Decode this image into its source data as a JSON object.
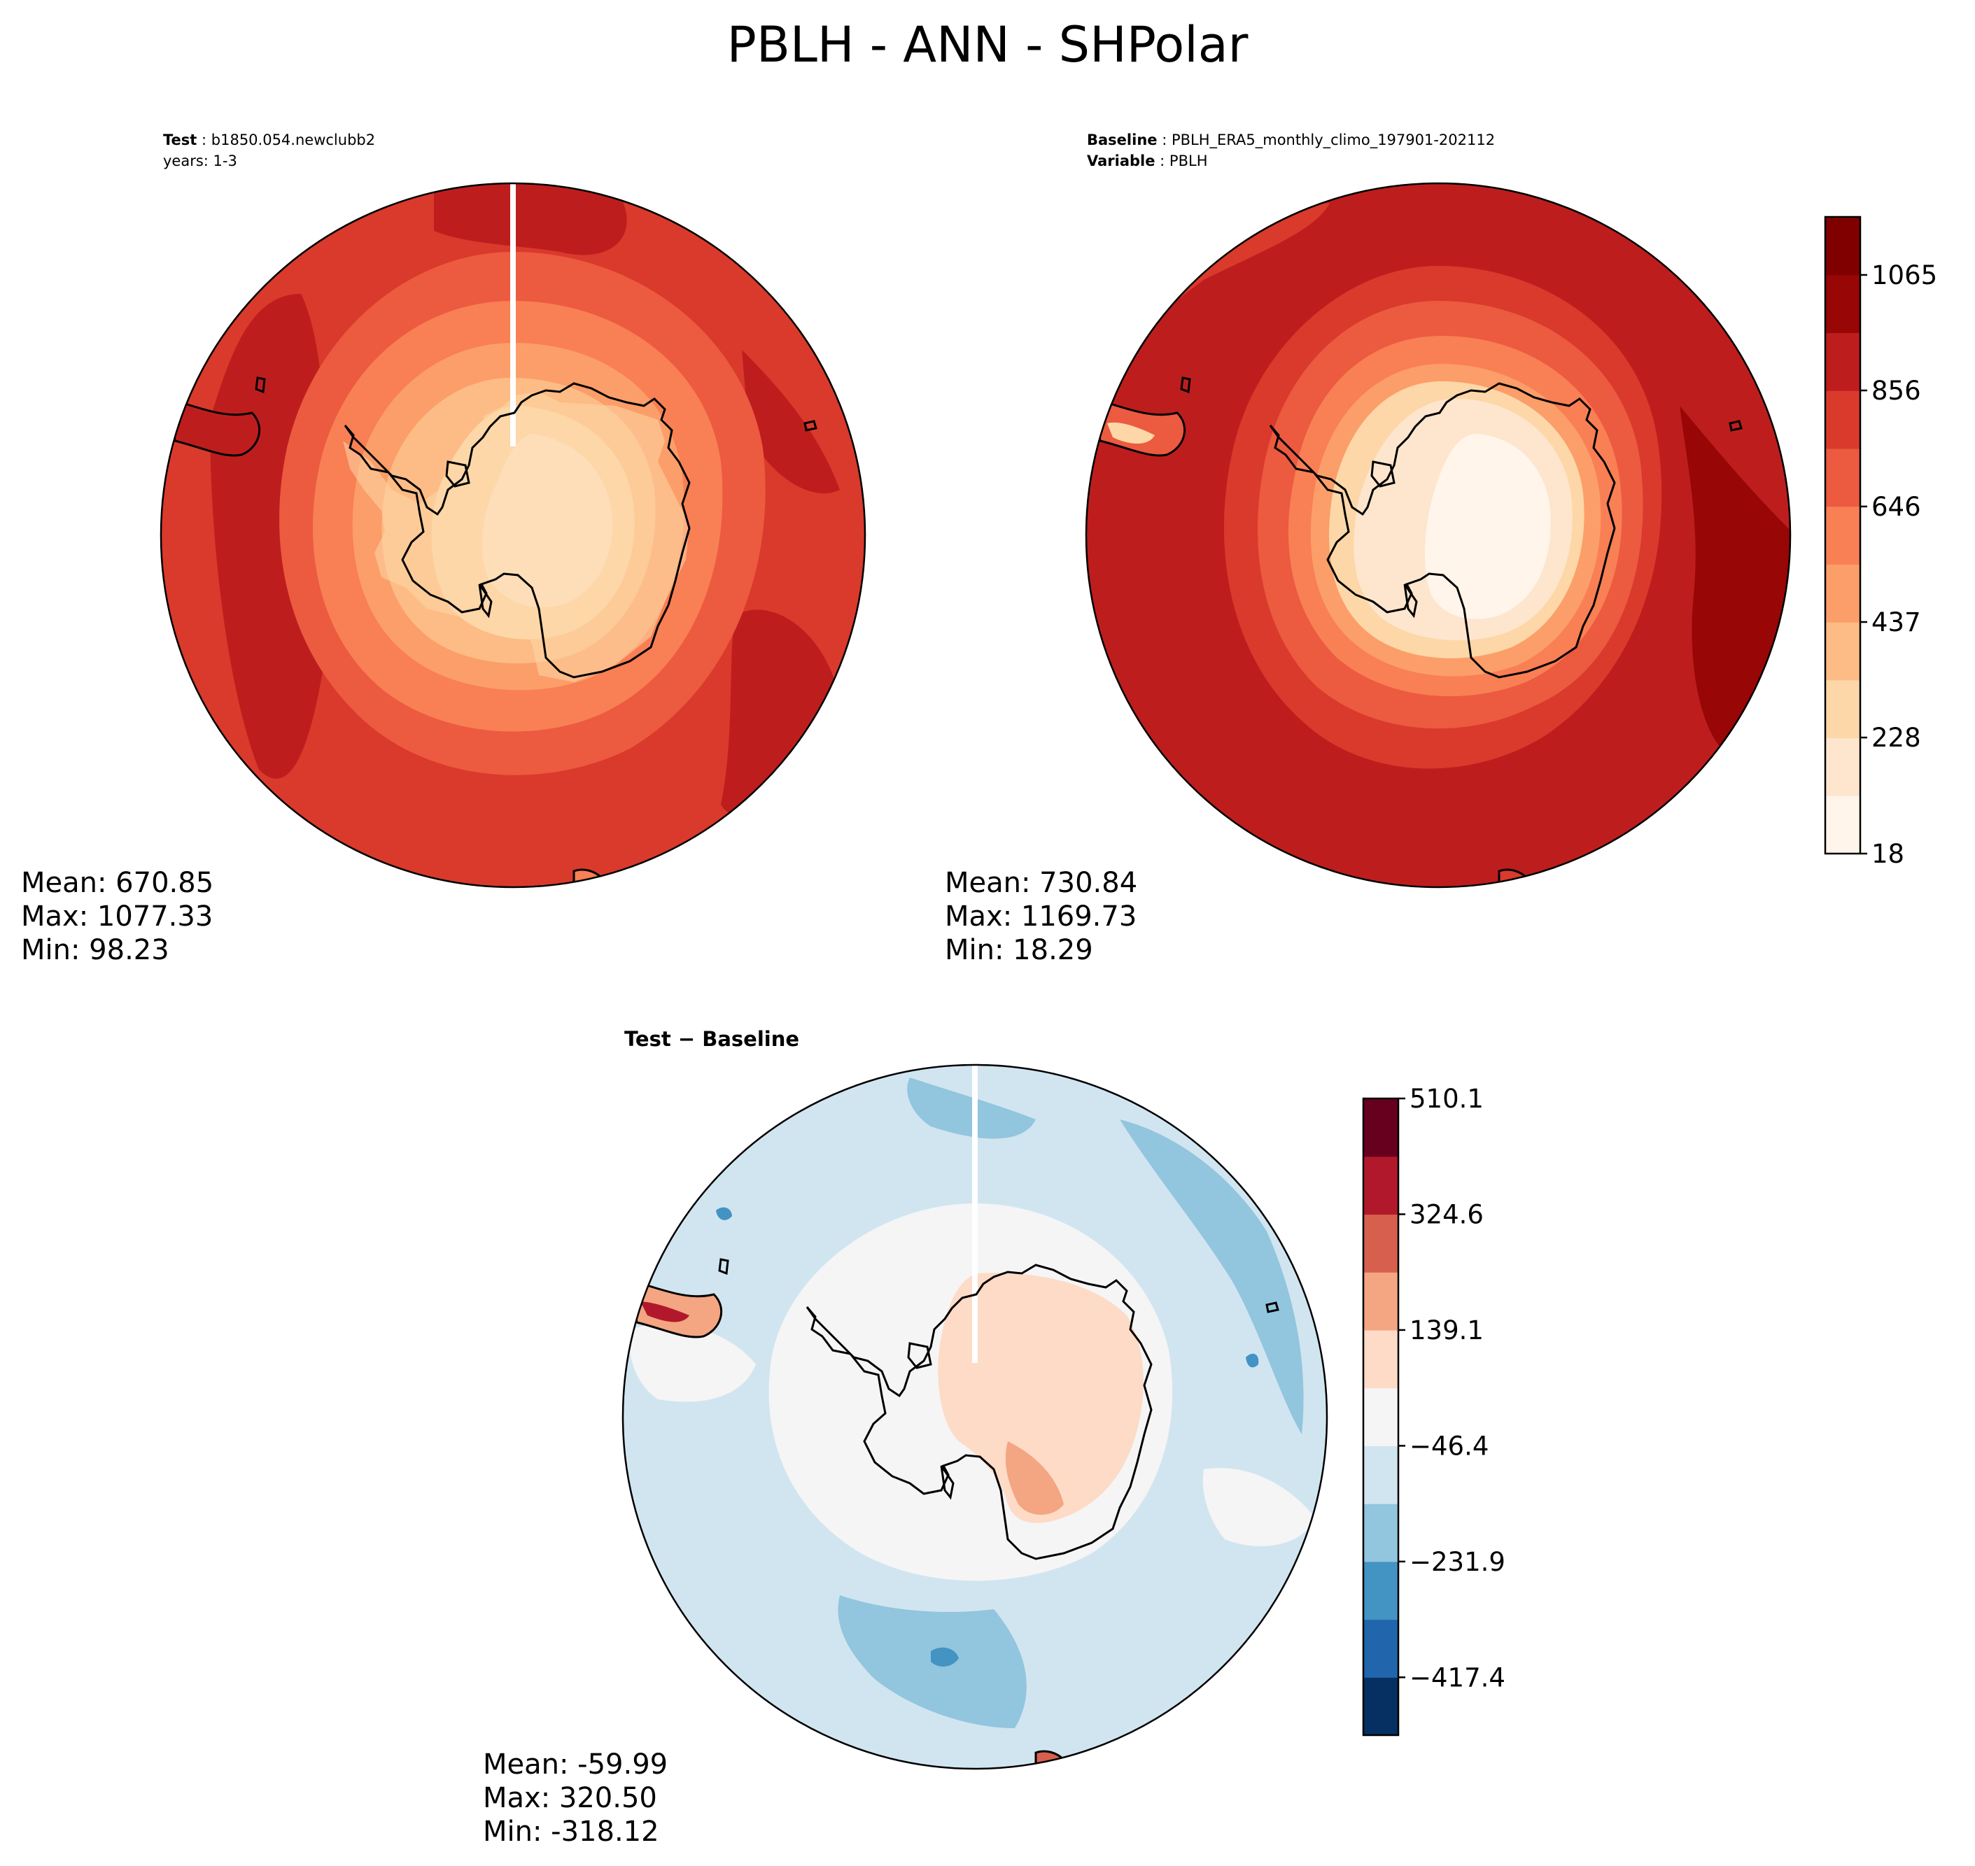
{
  "title": "PBLH - ANN - SHPolar",
  "colors": {
    "seq": [
      "#fff5eb",
      "#fee6ce",
      "#fdd7a8",
      "#fdbc85",
      "#fc9e69",
      "#f97f54",
      "#ec5a40",
      "#d93a2c",
      "#bd1e1d",
      "#980606",
      "#800000"
    ],
    "div": [
      "#053061",
      "#2166ac",
      "#4393c3",
      "#92c5de",
      "#d1e5f0",
      "#f5f5f5",
      "#fddbc7",
      "#f4a582",
      "#d6604d",
      "#b2182b",
      "#67001f"
    ]
  },
  "panels": {
    "test": {
      "label_bold": "Test",
      "label_value": "b1850.054.newclubb2",
      "years": "years: 1-3",
      "stats": {
        "mean": "Mean: 670.85",
        "max": "Max: 1077.33",
        "min": "Min: 98.23"
      }
    },
    "baseline": {
      "label_bold": "Baseline",
      "label_value": "PBLH_ERA5_monthly_climo_197901-202112",
      "variable_bold": "Variable",
      "variable_value": "PBLH",
      "stats": {
        "mean": "Mean: 730.84",
        "max": "Max: 1169.73",
        "min": "Min: 18.29"
      }
    },
    "diff": {
      "label": "Test − Baseline",
      "stats": {
        "mean": "Mean: -59.99",
        "max": "Max: 320.50",
        "min": "Min: -318.12"
      }
    }
  },
  "chart_data": [
    {
      "type": "heatmap",
      "name": "Test",
      "projection": "south polar stereographic",
      "region": "SHPolar",
      "colorbar": "shared with Baseline",
      "stats": {
        "mean": 670.85,
        "max": 1077.33,
        "min": 98.23
      }
    },
    {
      "type": "heatmap",
      "name": "Baseline",
      "projection": "south polar stereographic",
      "region": "SHPolar",
      "colorbar": {
        "ticks": [
          18,
          228,
          437,
          646,
          856,
          1065
        ],
        "tick_labels": [
          "18",
          "228",
          "437",
          "646",
          "856",
          "1065"
        ],
        "range": [
          18,
          1170
        ],
        "n_levels": 11,
        "colormap": "OrRd-like (Reds)"
      },
      "stats": {
        "mean": 730.84,
        "max": 1169.73,
        "min": 18.29
      }
    },
    {
      "type": "heatmap",
      "name": "Test − Baseline",
      "projection": "south polar stereographic",
      "region": "SHPolar",
      "colorbar": {
        "ticks": [
          510.1,
          324.6,
          139.1,
          -46.4,
          -231.9,
          -417.4
        ],
        "tick_labels": [
          "510.1",
          "324.6",
          "139.1",
          "−46.4",
          "−231.9",
          "−417.4"
        ],
        "range": [
          -510.1,
          510.1
        ],
        "n_levels": 11,
        "colormap": "RdBu_r"
      },
      "stats": {
        "mean": -59.99,
        "max": 320.5,
        "min": -318.12
      }
    }
  ]
}
